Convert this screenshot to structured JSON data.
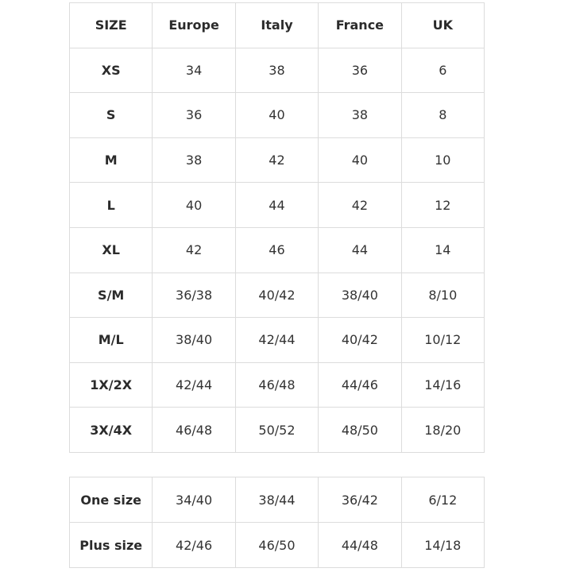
{
  "size_table": {
    "header": [
      "SIZE",
      "Europe",
      "Italy",
      "France",
      "UK"
    ],
    "rows": [
      [
        "XS",
        "34",
        "38",
        "36",
        "6"
      ],
      [
        "S",
        "36",
        "40",
        "38",
        "8"
      ],
      [
        "M",
        "38",
        "42",
        "40",
        "10"
      ],
      [
        "L",
        "40",
        "44",
        "42",
        "12"
      ],
      [
        "XL",
        "42",
        "46",
        "44",
        "14"
      ],
      [
        "S/M",
        "36/38",
        "40/42",
        "38/40",
        "8/10"
      ],
      [
        "M/L",
        "38/40",
        "42/44",
        "40/42",
        "10/12"
      ],
      [
        "1X/2X",
        "42/44",
        "46/48",
        "44/46",
        "14/16"
      ],
      [
        "3X/4X",
        "46/48",
        "50/52",
        "48/50",
        "18/20"
      ]
    ]
  },
  "one_size_table": {
    "rows": [
      [
        "One size",
        "34/40",
        "38/44",
        "36/42",
        "6/12"
      ],
      [
        "Plus size",
        "42/46",
        "46/50",
        "44/48",
        "14/18"
      ]
    ]
  }
}
